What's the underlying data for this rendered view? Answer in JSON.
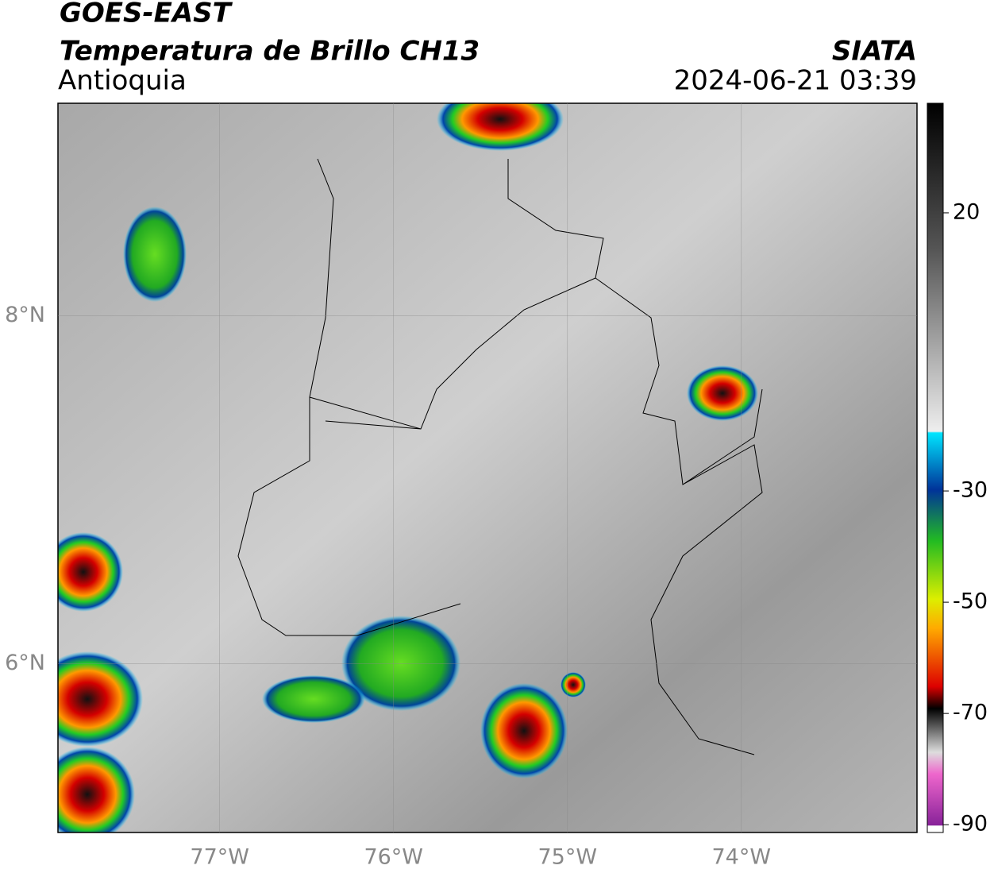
{
  "header": {
    "title": "GOES-EAST",
    "subtitle": "Temperatura de Brillo CH13",
    "region": "Antioquia",
    "source": "SIATA",
    "datetime": "2024-06-21 03:39"
  },
  "map": {
    "xlim": [
      -77.93,
      -72.99
    ],
    "ylim": [
      5.03,
      9.22
    ],
    "xticks": [
      {
        "value": -77,
        "label": "77°W"
      },
      {
        "value": -76,
        "label": "76°W"
      },
      {
        "value": -75,
        "label": "75°W"
      },
      {
        "value": -74,
        "label": "74°W"
      }
    ],
    "yticks": [
      {
        "value": 8,
        "label": "8°N"
      },
      {
        "value": 6,
        "label": "6°N"
      }
    ],
    "grid": true
  },
  "colorbar": {
    "lim": [
      -91.4,
      39.7
    ],
    "ticks": [
      20,
      -30,
      -50,
      -70,
      -90
    ]
  }
}
